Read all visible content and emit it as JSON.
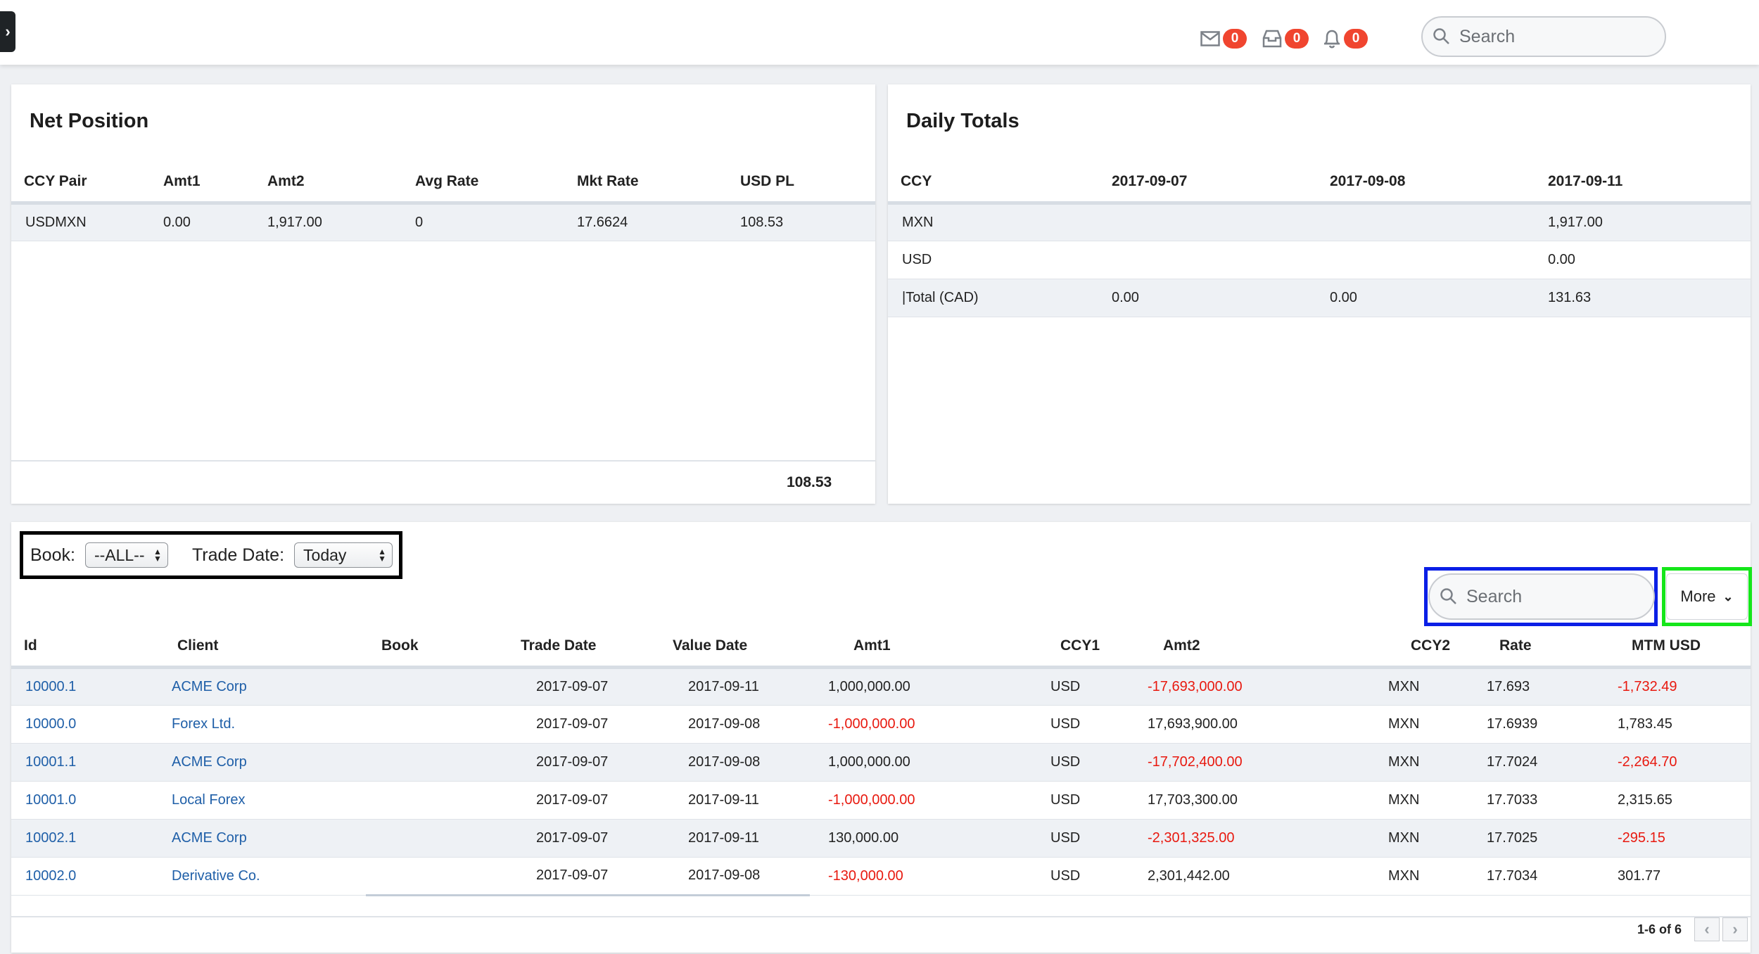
{
  "header": {
    "mail_count": "0",
    "inbox_count": "0",
    "alerts_count": "0",
    "search_placeholder": "Search"
  },
  "net_position": {
    "title": "Net Position",
    "columns": [
      "CCY Pair",
      "Amt1",
      "Amt2",
      "Avg Rate",
      "Mkt Rate",
      "USD PL"
    ],
    "rows": [
      [
        "USDMXN",
        "0.00",
        "1,917.00",
        "0",
        "17.6624",
        "108.53"
      ]
    ],
    "total": "108.53"
  },
  "daily_totals": {
    "title": "Daily Totals",
    "columns": [
      "CCY",
      "2017-09-07",
      "2017-09-08",
      "2017-09-11"
    ],
    "rows": [
      [
        "MXN",
        "",
        "",
        "1,917.00"
      ],
      [
        "USD",
        "",
        "",
        "0.00"
      ],
      [
        "|Total (CAD)",
        "0.00",
        "0.00",
        "131.63"
      ]
    ]
  },
  "trades": {
    "filters": {
      "book_label": "Book:",
      "book_value": "--ALL--",
      "trade_date_label": "Trade Date:",
      "trade_date_value": "Today"
    },
    "search_placeholder": "Search",
    "more_label": "More",
    "columns": [
      "Id",
      "Client",
      "Book",
      "Trade Date",
      "Value Date",
      "Amt1",
      "CCY1",
      "Amt2",
      "CCY2",
      "Rate",
      "MTM USD"
    ],
    "rows": [
      {
        "id": "10000.1",
        "client": "ACME Corp",
        "book": "",
        "trade_date": "2017-09-07",
        "value_date": "2017-09-11",
        "amt1": "1,000,000.00",
        "ccy1": "USD",
        "amt2": "-17,693,000.00",
        "ccy2": "MXN",
        "rate": "17.693",
        "mtm": "-1,732.49"
      },
      {
        "id": "10000.0",
        "client": "Forex Ltd.",
        "book": "",
        "trade_date": "2017-09-07",
        "value_date": "2017-09-08",
        "amt1": "-1,000,000.00",
        "ccy1": "USD",
        "amt2": "17,693,900.00",
        "ccy2": "MXN",
        "rate": "17.6939",
        "mtm": "1,783.45"
      },
      {
        "id": "10001.1",
        "client": "ACME Corp",
        "book": "",
        "trade_date": "2017-09-07",
        "value_date": "2017-09-08",
        "amt1": "1,000,000.00",
        "ccy1": "USD",
        "amt2": "-17,702,400.00",
        "ccy2": "MXN",
        "rate": "17.7024",
        "mtm": "-2,264.70"
      },
      {
        "id": "10001.0",
        "client": "Local Forex",
        "book": "",
        "trade_date": "2017-09-07",
        "value_date": "2017-09-11",
        "amt1": "-1,000,000.00",
        "ccy1": "USD",
        "amt2": "17,703,300.00",
        "ccy2": "MXN",
        "rate": "17.7033",
        "mtm": "2,315.65"
      },
      {
        "id": "10002.1",
        "client": "ACME Corp",
        "book": "",
        "trade_date": "2017-09-07",
        "value_date": "2017-09-11",
        "amt1": "130,000.00",
        "ccy1": "USD",
        "amt2": "-2,301,325.00",
        "ccy2": "MXN",
        "rate": "17.7025",
        "mtm": "-295.15"
      },
      {
        "id": "10002.0",
        "client": "Derivative Co.",
        "book": "",
        "trade_date": "2017-09-07",
        "value_date": "2017-09-08",
        "amt1": "-130,000.00",
        "ccy1": "USD",
        "amt2": "2,301,442.00",
        "ccy2": "MXN",
        "rate": "17.7034",
        "mtm": "301.77"
      }
    ],
    "pagination": "1-6 of 6"
  },
  "colors": {
    "negative": "#e8190f",
    "link": "#1f5fa8",
    "badge": "#f0452f",
    "highlight_filters": "#000000",
    "highlight_search": "#0b1fe6",
    "highlight_more": "#15e61a"
  }
}
